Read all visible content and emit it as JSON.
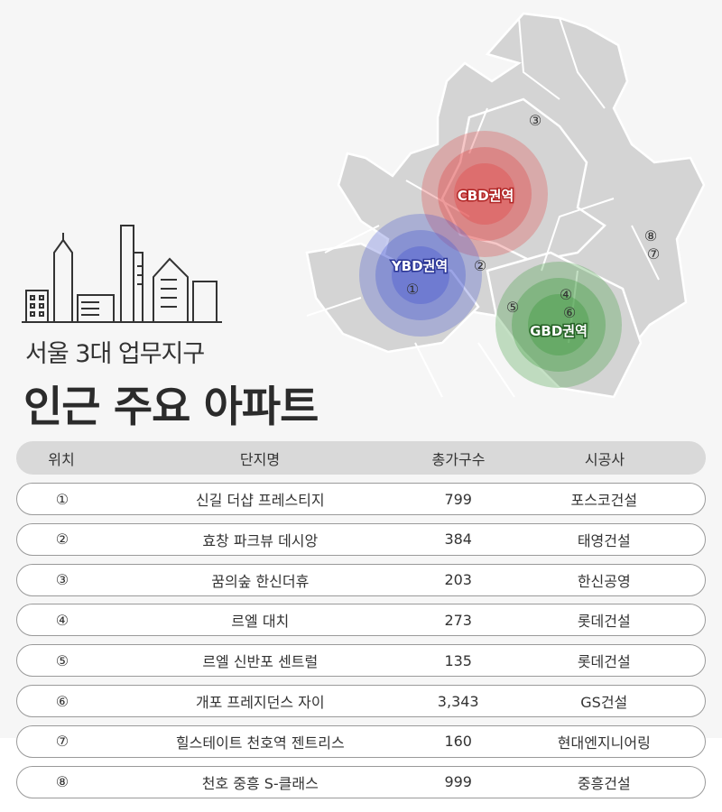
{
  "title": {
    "line1": "서울 3대 업무지구",
    "line2": "인근 주요 아파트"
  },
  "map": {
    "zones": [
      {
        "label": "CBD권역",
        "color": "#e04848"
      },
      {
        "label": "YBD권역",
        "color": "#4a5bd0"
      },
      {
        "label": "GBD권역",
        "color": "#3f9a3f"
      }
    ],
    "markers": [
      "①",
      "②",
      "③",
      "④",
      "⑤",
      "⑥",
      "⑦",
      "⑧"
    ]
  },
  "table": {
    "headers": [
      "위치",
      "단지명",
      "총가구수",
      "시공사"
    ],
    "rows": [
      {
        "no": "①",
        "name": "신길 더샵 프레스티지",
        "units": "799",
        "builder": "포스코건설"
      },
      {
        "no": "②",
        "name": "효창 파크뷰 데시앙",
        "units": "384",
        "builder": "태영건설"
      },
      {
        "no": "③",
        "name": "꿈의숲 한신더휴",
        "units": "203",
        "builder": "한신공영"
      },
      {
        "no": "④",
        "name": "르엘 대치",
        "units": "273",
        "builder": "롯데건설"
      },
      {
        "no": "⑤",
        "name": "르엘 신반포 센트럴",
        "units": "135",
        "builder": "롯데건설"
      },
      {
        "no": "⑥",
        "name": "개포 프레지던스 자이",
        "units": "3,343",
        "builder": "GS건설"
      },
      {
        "no": "⑦",
        "name": "힐스테이트 천호역 젠트리스",
        "units": "160",
        "builder": "현대엔지니어링"
      },
      {
        "no": "⑧",
        "name": "천호 중흥 S-클래스",
        "units": "999",
        "builder": "중흥건설"
      }
    ]
  }
}
